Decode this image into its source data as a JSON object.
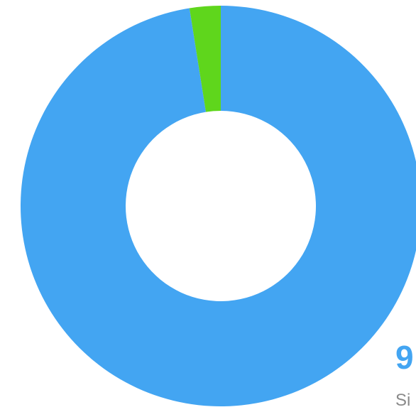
{
  "chart_data": {
    "type": "pie",
    "donut": true,
    "slices": [
      {
        "value": 97.5,
        "color": "#43a5f2"
      },
      {
        "value": 2.5,
        "color": "#5fd61c"
      }
    ],
    "visible_value_text": "9",
    "visible_caption_text": "Si"
  },
  "colors": {
    "primary": "#43a5f2",
    "secondary": "#5fd61c",
    "caption": "#8a8a8a",
    "background": "#ffffff"
  }
}
